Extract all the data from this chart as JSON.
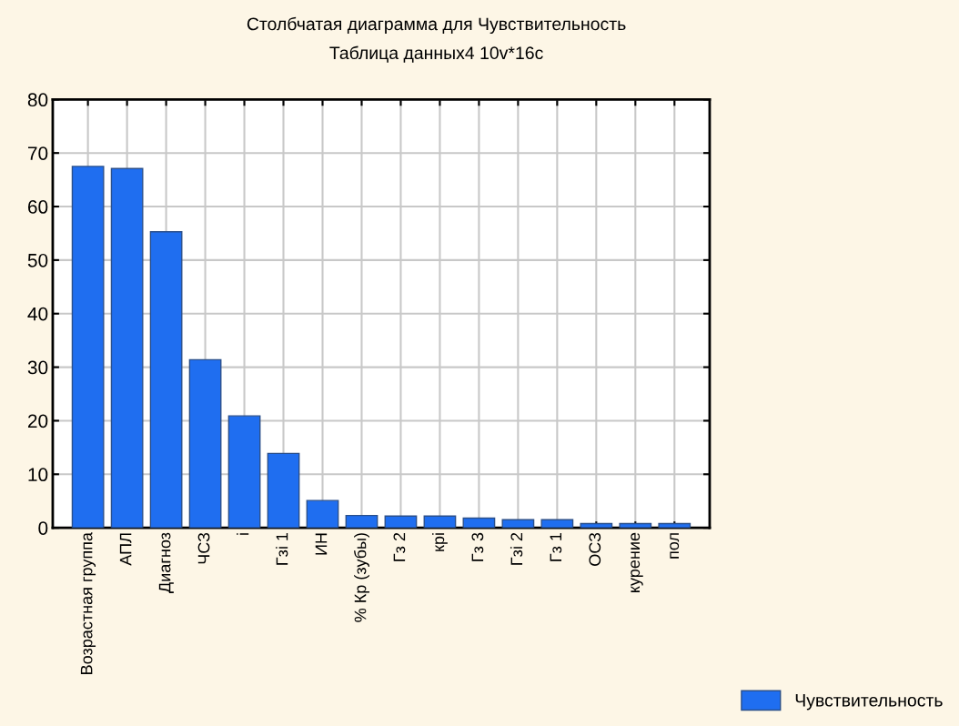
{
  "chart_data": {
    "type": "bar",
    "title": "Столбчатая диаграмма для Чувствительность",
    "subtitle": "Таблица данных4 10v*16c",
    "categories": [
      "Возрастная группа",
      "АПЛ",
      "Диагноз",
      "ЧСЗ",
      "i",
      "Гзi 1",
      "ИН",
      "% Кр (зубы)",
      "Гз 2",
      "крi",
      "Гз 3",
      "Гзi 2",
      "Гз 1",
      "ОСЗ",
      "курение",
      "пол"
    ],
    "series": [
      {
        "name": "Чувствительность",
        "color": "#1f6ef0",
        "values": [
          67.5,
          67.1,
          55.3,
          31.4,
          20.9,
          13.9,
          5.1,
          2.3,
          2.2,
          2.2,
          1.8,
          1.5,
          1.5,
          0.8,
          0.8,
          0.8
        ]
      }
    ],
    "ylim": [
      0,
      80
    ],
    "yticks": [
      0,
      10,
      20,
      30,
      40,
      50,
      60,
      70,
      80
    ],
    "grid": true,
    "legend": "bottom right"
  }
}
